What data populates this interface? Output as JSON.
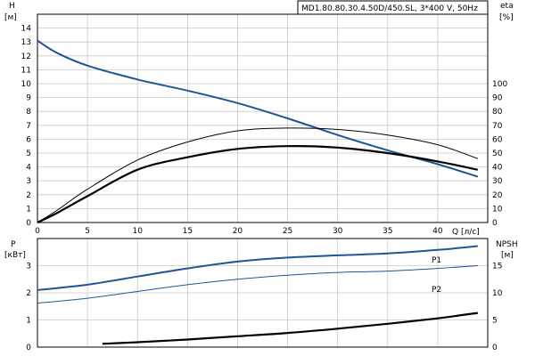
{
  "chart_data": [
    {
      "type": "line",
      "panel": "top",
      "title": "MD1.80.80.30.4.50D/450.SL, 3*400 V, 50Hz",
      "xlabel": "Q [л/с]",
      "left_axis": {
        "label_line1": "H",
        "label_line2": "[м]",
        "ylim": [
          0,
          15
        ],
        "ticks": [
          0,
          1,
          2,
          3,
          4,
          5,
          6,
          7,
          8,
          9,
          10,
          11,
          12,
          13,
          14
        ]
      },
      "right_axis": {
        "label_line1": "eta",
        "label_line2": "[%]",
        "ylim": [
          0,
          150
        ],
        "ticks": [
          0,
          10,
          20,
          30,
          40,
          50,
          60,
          70,
          80,
          90,
          100
        ]
      },
      "xlim": [
        0,
        45
      ],
      "xticks": [
        0,
        5,
        10,
        15,
        20,
        25,
        30,
        35,
        40
      ],
      "grid": true,
      "series": [
        {
          "key": "H",
          "axis": "left",
          "color": "#1f5596",
          "width": 2,
          "x": [
            0,
            2,
            5,
            10,
            15,
            20,
            25,
            30,
            35,
            40,
            44
          ],
          "y": [
            13.1,
            12.2,
            11.3,
            10.3,
            9.5,
            8.6,
            7.5,
            6.3,
            5.2,
            4.2,
            3.3
          ]
        },
        {
          "key": "eta_thin",
          "axis": "right",
          "color": "#000000",
          "width": 1,
          "x": [
            0,
            2,
            5,
            10,
            15,
            20,
            25,
            30,
            35,
            40,
            44
          ],
          "y": [
            0,
            9,
            24,
            45,
            58,
            66,
            68,
            67,
            63,
            56,
            46
          ]
        },
        {
          "key": "eta_thick",
          "axis": "right",
          "color": "#000000",
          "width": 2.2,
          "x": [
            0,
            2,
            5,
            10,
            15,
            20,
            25,
            30,
            35,
            40,
            44
          ],
          "y": [
            0,
            7,
            19,
            38,
            47,
            53,
            55,
            54,
            50,
            44,
            38
          ]
        }
      ]
    },
    {
      "type": "line",
      "panel": "bottom",
      "left_axis": {
        "label_line1": "P",
        "label_line2": "[кВт]",
        "ylim": [
          0,
          4
        ],
        "ticks": [
          0,
          1,
          2,
          3
        ]
      },
      "right_axis": {
        "label_line1": "NPSH",
        "label_line2": "[м]",
        "ylim": [
          0,
          20
        ],
        "ticks": [
          0,
          5,
          10,
          15
        ]
      },
      "xlim": [
        0,
        45
      ],
      "grid": true,
      "series": [
        {
          "name": "P1",
          "axis": "left",
          "color": "#1f5596",
          "width": 2,
          "x": [
            0,
            5,
            10,
            15,
            20,
            25,
            30,
            35,
            40,
            44
          ],
          "y": [
            2.1,
            2.3,
            2.6,
            2.9,
            3.15,
            3.3,
            3.38,
            3.45,
            3.58,
            3.72
          ]
        },
        {
          "name": "P2",
          "axis": "left",
          "color": "#1f5596",
          "width": 1,
          "x": [
            0,
            5,
            10,
            15,
            20,
            25,
            30,
            35,
            40,
            44
          ],
          "y": [
            1.62,
            1.8,
            2.05,
            2.3,
            2.5,
            2.65,
            2.75,
            2.8,
            2.9,
            3.0
          ]
        },
        {
          "key": "NPSH",
          "axis": "right",
          "color": "#000000",
          "width": 2.2,
          "x": [
            6.5,
            10,
            15,
            20,
            25,
            30,
            35,
            40,
            44
          ],
          "y": [
            0.6,
            0.9,
            1.4,
            2.0,
            2.6,
            3.4,
            4.3,
            5.3,
            6.3
          ]
        }
      ]
    }
  ]
}
